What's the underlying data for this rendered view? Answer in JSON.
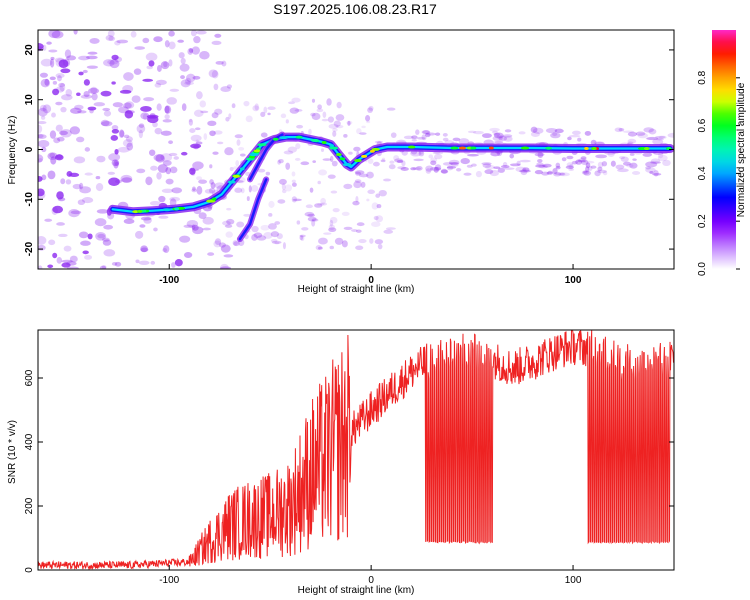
{
  "title": "S197.2025.106.08.23.R17",
  "chart_data": [
    {
      "type": "heatmap",
      "xlabel": "Height of straight line (km)",
      "ylabel": "Frequency (Hz)",
      "xlim": [
        -165,
        150
      ],
      "ylim": [
        -24,
        24
      ],
      "xticks": [
        -100,
        0,
        100
      ],
      "yticks": [
        -20,
        -10,
        0,
        10,
        20
      ],
      "colorbar": {
        "label": "Normalized spectral amplitude",
        "range": [
          0,
          1
        ],
        "ticks": [
          "0.0",
          "0.2",
          "0.4",
          "0.6",
          "0.8"
        ],
        "colormap": [
          "#ff44cc",
          "#ff0000",
          "#ff8800",
          "#ffff00",
          "#00ff00",
          "#00ffff",
          "#0000ff",
          "#8800ff",
          "#ffffff"
        ]
      },
      "ridge": {
        "x": [
          -128,
          -118,
          -108,
          -98,
          -88,
          -80,
          -74,
          -70,
          -66,
          -62,
          -58,
          -54,
          -48,
          -42,
          -36,
          -30,
          -24,
          -20,
          -16,
          -12,
          -10,
          -6,
          -2,
          2,
          8,
          20,
          40,
          60,
          80,
          100,
          120,
          148
        ],
        "y": [
          -12,
          -12.5,
          -12.3,
          -12,
          -11.5,
          -10.5,
          -9,
          -7,
          -5,
          -3,
          -1,
          1,
          2,
          2.5,
          2.5,
          2,
          1.5,
          1,
          -1,
          -3,
          -3.5,
          -2,
          -1,
          0,
          0.5,
          0.5,
          0.3,
          0.3,
          0.3,
          0.2,
          0.2,
          0.2
        ]
      },
      "branches": [
        {
          "x": [
            -65,
            -60,
            -56,
            -52
          ],
          "y": [
            -18,
            -15,
            -10,
            -6
          ]
        },
        {
          "x": [
            -60,
            -56,
            -52,
            -48,
            -44
          ],
          "y": [
            -6,
            -3,
            0,
            2,
            3
          ]
        }
      ]
    },
    {
      "type": "line",
      "xlabel": "Height of straight line (km)",
      "ylabel": "SNR (10 * v/v)",
      "xlim": [
        -165,
        150
      ],
      "ylim": [
        0,
        750
      ],
      "xticks": [
        -100,
        0,
        100
      ],
      "yticks": [
        0,
        200,
        400,
        600
      ],
      "color": "#ee2222",
      "envelope": {
        "x": [
          -165,
          -120,
          -90,
          -80,
          -70,
          -60,
          -50,
          -40,
          -30,
          -20,
          -10,
          0,
          10,
          20,
          30,
          40,
          50,
          60,
          70,
          80,
          90,
          100,
          110,
          120,
          130,
          140,
          150
        ],
        "y": [
          15,
          15,
          25,
          90,
          140,
          160,
          170,
          200,
          300,
          360,
          430,
          500,
          560,
          620,
          660,
          680,
          680,
          660,
          630,
          650,
          680,
          700,
          690,
          660,
          640,
          650,
          660
        ]
      },
      "dropouts": [
        {
          "x_range": [
            27,
            60
          ],
          "y": 85
        },
        {
          "x_range": [
            107,
            148
          ],
          "y": 85
        }
      ]
    }
  ]
}
